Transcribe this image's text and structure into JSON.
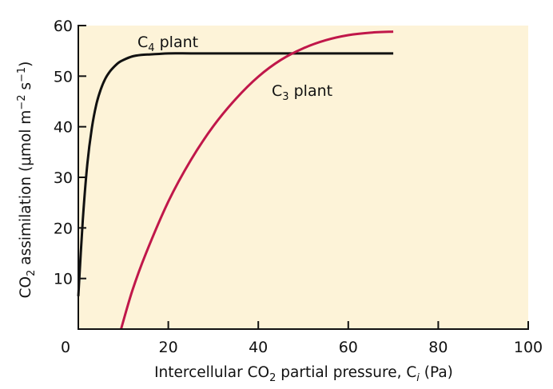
{
  "chart_data": {
    "type": "line",
    "xlabel": {
      "prefix": "Intercellular CO",
      "sub1": "2",
      "middle": " partial pressure, C",
      "sub2": "i",
      "suffix": " (Pa)"
    },
    "ylabel": {
      "prefix": "CO",
      "sub1": "2",
      "middle": " assimilation (μmol m",
      "sup1": "−2",
      "middle2": " s",
      "sup2": "−1",
      "suffix": ")"
    },
    "xlim": [
      0,
      100
    ],
    "ylim": [
      0,
      60
    ],
    "x_ticks": [
      0,
      20,
      40,
      60,
      80,
      100
    ],
    "y_ticks": [
      10,
      20,
      30,
      40,
      50,
      60
    ],
    "grid": false,
    "background_color": "#fdf3d8",
    "series": [
      {
        "name": "C4 plant",
        "label": {
          "prefix": "C",
          "sub": "4",
          "suffix": " plant"
        },
        "color": "#111111",
        "x": [
          0,
          1,
          2,
          3,
          4,
          5,
          6,
          7,
          8,
          9,
          10,
          12,
          14,
          16,
          18,
          20,
          25,
          30,
          35,
          40,
          50,
          60,
          70
        ],
        "y": [
          6.5,
          21.6,
          32.6,
          39.7,
          44.4,
          47.4,
          49.5,
          50.9,
          51.9,
          52.7,
          53.2,
          53.9,
          54.2,
          54.3,
          54.4,
          54.5,
          54.5,
          54.5,
          54.5,
          54.5,
          54.5,
          54.5,
          54.5
        ]
      },
      {
        "name": "C3 plant",
        "label": {
          "prefix": "C",
          "sub": "3",
          "suffix": " plant"
        },
        "color": "#c0174a",
        "x": [
          9.5,
          12,
          15,
          20,
          25,
          30,
          35,
          40,
          45,
          50,
          55,
          60,
          65,
          70
        ],
        "y": [
          0,
          7.6,
          14.9,
          25.2,
          33.4,
          40.1,
          45.5,
          49.9,
          53.2,
          55.5,
          57.1,
          58.1,
          58.6,
          58.8
        ]
      }
    ]
  }
}
